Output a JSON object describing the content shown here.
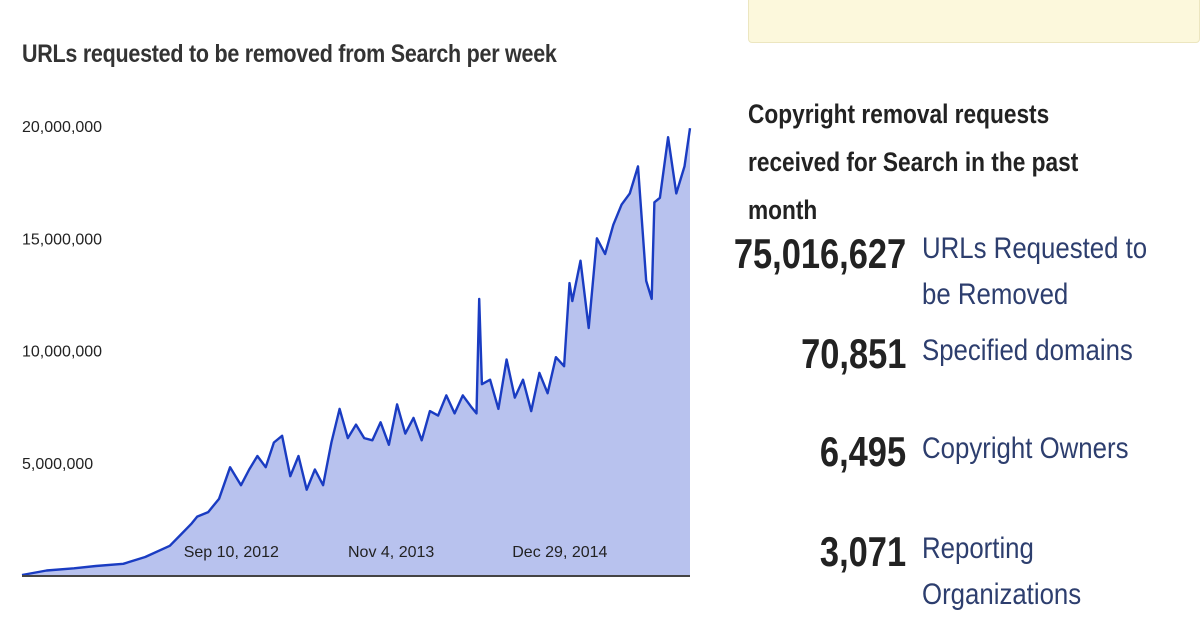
{
  "notice": {
    "text": ""
  },
  "stats": {
    "heading": "Copyright removal requests received for Search in the past month",
    "items": [
      {
        "value": "75,016,627",
        "label": "URLs Requested to be Removed"
      },
      {
        "value": "70,851",
        "label": "Specified domains"
      },
      {
        "value": "6,495",
        "label": "Copyright Owners"
      },
      {
        "value": "3,071",
        "label": "Reporting Organizations"
      }
    ]
  },
  "colors": {
    "line": "#1a3cc2",
    "fill": "#b8c2ee",
    "axis": "#444444"
  },
  "chart_data": {
    "type": "area",
    "title": "URLs requested to be removed from Search per week",
    "xlabel": "",
    "ylabel": "",
    "ylim": [
      0,
      20000000
    ],
    "yticks": [
      5000000,
      10000000,
      15000000,
      20000000
    ],
    "ytick_labels": [
      "5,000,000",
      "10,000,000",
      "15,000,000",
      "20,000,000"
    ],
    "x_start": "2011-07-04",
    "x_end": "2016-03-07",
    "xticks": [
      "2012-09-10",
      "2013-11-04",
      "2014-12-29"
    ],
    "xtick_labels": [
      "Sep 10, 2012",
      "Nov 4, 2013",
      "Dec 29, 2014"
    ],
    "grid": false,
    "series": [
      {
        "x": [
          "2011-07-04",
          "2011-09-05",
          "2011-11-14",
          "2012-01-09",
          "2012-03-19",
          "2012-05-14",
          "2012-07-16",
          "2012-08-13",
          "2012-09-10",
          "2012-09-24",
          "2012-10-22",
          "2012-11-19",
          "2012-12-17",
          "2013-01-14",
          "2013-02-04",
          "2013-02-25",
          "2013-03-18",
          "2013-04-08",
          "2013-04-29",
          "2013-05-20",
          "2013-06-10",
          "2013-07-01",
          "2013-07-22",
          "2013-08-12",
          "2013-09-02",
          "2013-09-23",
          "2013-10-14",
          "2013-11-04",
          "2013-11-25",
          "2013-12-16",
          "2014-01-06",
          "2014-01-27",
          "2014-02-17",
          "2014-03-10",
          "2014-03-31",
          "2014-04-21",
          "2014-05-12",
          "2014-06-02",
          "2014-06-23",
          "2014-07-14",
          "2014-08-04",
          "2014-08-25",
          "2014-09-08",
          "2014-09-15",
          "2014-09-22",
          "2014-10-13",
          "2014-11-03",
          "2014-11-24",
          "2014-12-15",
          "2015-01-05",
          "2015-01-26",
          "2015-02-16",
          "2015-03-09",
          "2015-03-30",
          "2015-04-20",
          "2015-05-04",
          "2015-05-11",
          "2015-06-01",
          "2015-06-22",
          "2015-07-13",
          "2015-08-03",
          "2015-08-24",
          "2015-09-14",
          "2015-10-05",
          "2015-10-26",
          "2015-11-16",
          "2015-11-30",
          "2015-12-07",
          "2015-12-21",
          "2016-01-11",
          "2016-02-01",
          "2016-02-22",
          "2016-03-07"
        ],
        "y": [
          0,
          200000,
          300000,
          400000,
          500000,
          800000,
          1300000,
          1800000,
          2300000,
          2600000,
          2800000,
          3400000,
          4800000,
          4000000,
          4700000,
          5300000,
          4800000,
          5900000,
          6200000,
          4400000,
          5300000,
          3800000,
          4700000,
          4000000,
          5900000,
          7400000,
          6100000,
          6700000,
          6100000,
          6000000,
          6800000,
          5800000,
          7600000,
          6300000,
          7000000,
          6000000,
          7300000,
          7100000,
          8000000,
          7200000,
          8000000,
          7500000,
          7200000,
          12300000,
          8500000,
          8700000,
          7400000,
          9600000,
          7900000,
          8700000,
          7300000,
          9000000,
          8100000,
          9700000,
          9300000,
          13000000,
          12200000,
          14000000,
          11000000,
          15000000,
          14300000,
          15600000,
          16500000,
          17000000,
          18200000,
          13100000,
          12300000,
          16600000,
          16800000,
          19500000,
          17000000,
          18200000,
          19900000
        ]
      }
    ]
  }
}
